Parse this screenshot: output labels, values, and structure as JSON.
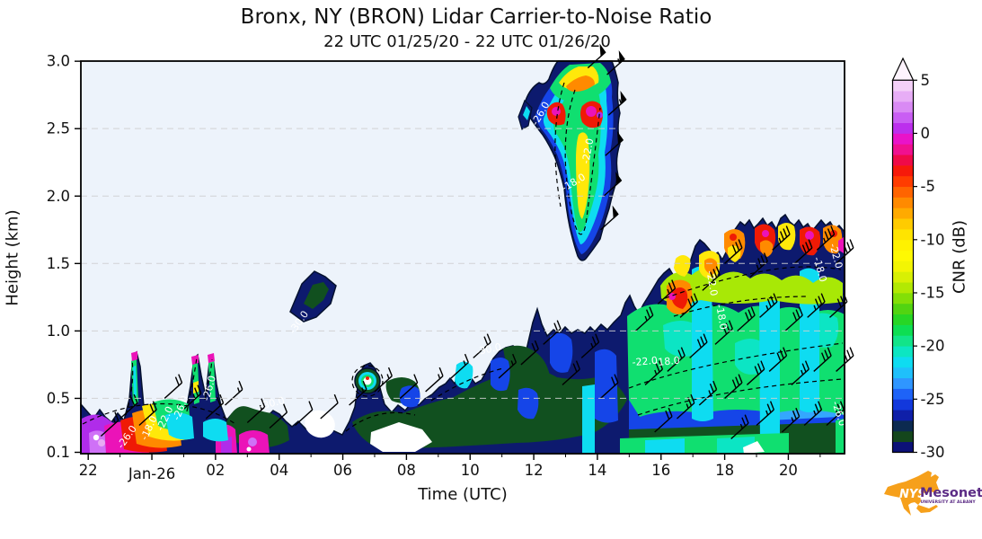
{
  "title": "Bronx, NY (BRON) Lidar Carrier-to-Noise Ratio",
  "subtitle": "22 UTC 01/25/20 - 22 UTC 01/26/20",
  "axes": {
    "x": {
      "label": "Time (UTC)",
      "ticks": [
        {
          "label": "22",
          "hours_from_start": 0
        },
        {
          "label": "Jan-26",
          "hours_from_start": 2
        },
        {
          "label": "02",
          "hours_from_start": 4
        },
        {
          "label": "04",
          "hours_from_start": 6
        },
        {
          "label": "06",
          "hours_from_start": 8
        },
        {
          "label": "08",
          "hours_from_start": 10
        },
        {
          "label": "10",
          "hours_from_start": 12
        },
        {
          "label": "12",
          "hours_from_start": 14
        },
        {
          "label": "14",
          "hours_from_start": 16
        },
        {
          "label": "16",
          "hours_from_start": 18
        },
        {
          "label": "18",
          "hours_from_start": 20
        },
        {
          "label": "20",
          "hours_from_start": 22
        }
      ]
    },
    "y": {
      "label": "Height (km)",
      "ticks": [
        {
          "label": "3.0",
          "km": 3.0
        },
        {
          "label": "2.5",
          "km": 2.5
        },
        {
          "label": "2.0",
          "km": 2.0
        },
        {
          "label": "1.5",
          "km": 1.5
        },
        {
          "label": "1.0",
          "km": 1.0
        },
        {
          "label": "0.5",
          "km": 0.5
        },
        {
          "label": "0.1",
          "km": 0.1
        }
      ],
      "range_km": [
        0.1,
        3.0
      ]
    }
  },
  "colorbar": {
    "label": "CNR (dB)",
    "range": [
      -30,
      5
    ],
    "extend": "max",
    "over_color": "#fdf3fd",
    "ticks": [
      "5",
      "0",
      "-5",
      "-10",
      "-15",
      "-20",
      "-25",
      "-30"
    ],
    "tick_values": [
      5,
      0,
      -5,
      -10,
      -15,
      -20,
      -25,
      -30
    ],
    "colors_low_to_high": [
      "#0c1177",
      "#14461c",
      "#0c2a50",
      "#0f1fa8",
      "#1238dc",
      "#1e63f7",
      "#2f96ff",
      "#1fc0fb",
      "#0edcf1",
      "#0ce6c2",
      "#12e489",
      "#0ede52",
      "#27d625",
      "#52d411",
      "#83df07",
      "#b2e903",
      "#d8f004",
      "#f3f503",
      "#fef902",
      "#fff200",
      "#ffe400",
      "#ffcb00",
      "#ffaa00",
      "#ff8a00",
      "#ff6400",
      "#ff3c00",
      "#f6190a",
      "#ef0a48",
      "#f01090",
      "#e913c9",
      "#bc2fed",
      "#c95ef3",
      "#d98af4",
      "#e7adf6",
      "#f4d0f8"
    ]
  },
  "contour_labels": [
    {
      "text": "-18.0",
      "t": 0.0,
      "h": 0.27,
      "rot": -65
    },
    {
      "text": "-22.0",
      "t": 0.5,
      "h": 0.34,
      "rot": -65
    },
    {
      "text": "-26.0",
      "t": 1.0,
      "h": 0.42,
      "rot": -68
    },
    {
      "text": "-26.0",
      "t": 1.9,
      "h": 0.57,
      "rot": -75
    },
    {
      "text": "-26.0",
      "t": 23.3,
      "h": 0.2,
      "rot": -55
    },
    {
      "text": "-30.0",
      "t": 3.8,
      "h": 0.44,
      "rot": -15
    },
    {
      "text": "-30.0",
      "t": 4.7,
      "h": 1.05,
      "rot": -55
    },
    {
      "text": "-30.0",
      "t": 10.6,
      "h": 0.84,
      "rot": -12
    },
    {
      "text": "-26.0",
      "t": 12.3,
      "h": 2.6,
      "rot": -60
    },
    {
      "text": "-22.0",
      "t": 13.8,
      "h": 2.33,
      "rot": -80
    },
    {
      "text": "-18.0",
      "t": 13.3,
      "h": 2.08,
      "rot": -30
    },
    {
      "text": "-22.0",
      "t": 15.5,
      "h": 0.75,
      "rot": -5
    },
    {
      "text": "-18.0",
      "t": 16.2,
      "h": 0.75,
      "rot": -5
    },
    {
      "text": "-22.0",
      "t": 17.5,
      "h": 1.35,
      "rot": 80
    },
    {
      "text": "-18.0",
      "t": 17.8,
      "h": 1.1,
      "rot": 80
    },
    {
      "text": "-18.0",
      "t": 20.9,
      "h": 1.45,
      "rot": 75
    },
    {
      "text": "-22.0",
      "t": 21.4,
      "h": 1.55,
      "rot": 75
    },
    {
      "text": "-26.0",
      "t": 21.5,
      "h": 0.38,
      "rot": 72
    }
  ],
  "logo": {
    "nys": "NYS",
    "name": "Mesonet",
    "sub": "UNIVERSITY AT ALBANY",
    "state_color": "#f6a01b",
    "text_color": "#5b2b85"
  },
  "chart_data": {
    "type": "heatmap",
    "title": "Bronx, NY (BRON) Lidar Carrier-to-Noise Ratio",
    "subtitle": "22 UTC 01/25/20 - 22 UTC 01/26/20",
    "xlabel": "Time (UTC)",
    "ylabel": "Height (km)",
    "value_label": "CNR (dB)",
    "value_range": [
      -30,
      5
    ],
    "x_hours_utc": [
      "22",
      "23",
      "00",
      "01",
      "02",
      "03",
      "04",
      "05",
      "06",
      "07",
      "08",
      "09",
      "10",
      "11",
      "12",
      "13",
      "14",
      "15",
      "16",
      "17",
      "18",
      "19",
      "20",
      "21"
    ],
    "heights_km": [
      0.1,
      0.3,
      0.5,
      0.7,
      0.9,
      1.1,
      1.3,
      1.5,
      1.7,
      1.9,
      2.1,
      2.4,
      2.7,
      3.0
    ],
    "cnr_db_grid_rows_by_height": [
      [
        -2,
        -6,
        -9,
        -5,
        -12,
        -28,
        -29,
        -28,
        null,
        null,
        -29,
        -28,
        -27,
        -26,
        -25,
        -23,
        -20,
        -18,
        -16,
        -17,
        -18,
        -20,
        -28,
        -22
      ],
      [
        -12,
        -16,
        -18,
        -15,
        -27,
        -29,
        -30,
        -29,
        -28,
        -28,
        -28,
        -27,
        -26,
        -25,
        -24,
        -22,
        -21,
        -19,
        -17,
        -16,
        -17,
        -19,
        -25,
        -21
      ],
      [
        -28,
        -24,
        -20,
        -23,
        -30,
        null,
        -29,
        -29,
        -29,
        -15,
        -28,
        -27,
        -26,
        -24,
        -23,
        -22,
        -21,
        -20,
        -18,
        -15,
        -17,
        -21,
        -23,
        -20
      ],
      [
        null,
        null,
        -24,
        -26,
        null,
        null,
        null,
        null,
        null,
        -22,
        -29,
        -28,
        -27,
        -25,
        -24,
        -23,
        -22,
        -21,
        -17,
        -15,
        -18,
        -22,
        -22,
        -19
      ],
      [
        null,
        null,
        null,
        null,
        null,
        null,
        null,
        null,
        null,
        null,
        null,
        -29,
        -22,
        -26,
        -25,
        -24,
        -23,
        -22,
        -18,
        -14,
        -19,
        -23,
        -21,
        -18
      ],
      [
        null,
        null,
        null,
        null,
        null,
        null,
        -29,
        null,
        null,
        null,
        null,
        null,
        null,
        -29,
        -28,
        -26,
        -27,
        -26,
        -12,
        -8,
        -20,
        -16,
        -13,
        -17
      ],
      [
        null,
        null,
        null,
        null,
        null,
        null,
        -30,
        null,
        null,
        null,
        null,
        null,
        null,
        null,
        null,
        -28,
        null,
        -28,
        -25,
        -6,
        -10,
        -12,
        -9,
        -14
      ],
      [
        null,
        null,
        null,
        null,
        null,
        null,
        null,
        null,
        null,
        null,
        null,
        null,
        null,
        null,
        null,
        null,
        null,
        -29,
        null,
        -18,
        -7,
        -9,
        -6,
        -11
      ],
      [
        null,
        null,
        null,
        null,
        null,
        null,
        null,
        null,
        null,
        null,
        null,
        null,
        null,
        null,
        null,
        -25,
        null,
        null,
        null,
        -28,
        -24,
        -26,
        -28,
        -29
      ],
      [
        null,
        null,
        null,
        null,
        null,
        null,
        null,
        null,
        null,
        null,
        null,
        null,
        null,
        null,
        -28,
        -18,
        -24,
        null,
        null,
        null,
        null,
        null,
        null,
        null
      ],
      [
        null,
        null,
        null,
        null,
        null,
        null,
        null,
        null,
        null,
        null,
        null,
        null,
        null,
        null,
        -26,
        -15,
        -22,
        null,
        null,
        null,
        null,
        null,
        null,
        null
      ],
      [
        null,
        null,
        null,
        null,
        null,
        null,
        null,
        null,
        null,
        null,
        null,
        null,
        null,
        null,
        -24,
        -12,
        -20,
        null,
        null,
        null,
        null,
        null,
        null,
        null
      ],
      [
        null,
        null,
        null,
        null,
        null,
        null,
        null,
        null,
        null,
        null,
        null,
        null,
        null,
        null,
        -20,
        -8,
        -14,
        null,
        null,
        null,
        null,
        null,
        null,
        null
      ],
      [
        null,
        null,
        null,
        null,
        null,
        null,
        null,
        null,
        null,
        null,
        null,
        null,
        null,
        null,
        -22,
        -4,
        -16,
        null,
        null,
        null,
        null,
        null,
        null,
        null
      ]
    ],
    "contour_lines_db": [
      -18,
      -22,
      -26,
      -30
    ],
    "wind_barbs_t_h_kt": [
      [
        14.3,
        2.9,
        55
      ],
      [
        14.35,
        2.6,
        55
      ],
      [
        14.25,
        2.3,
        50
      ],
      [
        14.2,
        2.0,
        50
      ],
      [
        14.1,
        1.75,
        50
      ],
      [
        13.7,
        2.95,
        50
      ],
      [
        22.4,
        0.22,
        15
      ],
      [
        23.0,
        0.35,
        20
      ],
      [
        23.6,
        0.3,
        20
      ],
      [
        0.4,
        0.5,
        20
      ],
      [
        1.0,
        0.42,
        25
      ],
      [
        1.7,
        0.35,
        20
      ],
      [
        2.3,
        0.45,
        15
      ],
      [
        3.0,
        0.32,
        15
      ],
      [
        3.7,
        0.28,
        10
      ],
      [
        4.5,
        0.3,
        10
      ],
      [
        5.3,
        0.35,
        10
      ],
      [
        6.2,
        0.45,
        15
      ],
      [
        7.0,
        0.55,
        15
      ],
      [
        7.8,
        0.5,
        10
      ],
      [
        8.6,
        0.55,
        15
      ],
      [
        9.4,
        0.65,
        15
      ],
      [
        10.1,
        0.8,
        20
      ],
      [
        10.9,
        0.65,
        15
      ],
      [
        11.6,
        0.75,
        20
      ],
      [
        12.3,
        0.9,
        20
      ],
      [
        12.9,
        0.6,
        20
      ],
      [
        13.5,
        0.8,
        25
      ],
      [
        14.1,
        0.5,
        20
      ],
      [
        15.2,
        1.0,
        25
      ],
      [
        15.9,
        1.2,
        25
      ],
      [
        16.6,
        1.1,
        30
      ],
      [
        17.3,
        1.3,
        30
      ],
      [
        18.0,
        1.5,
        30
      ],
      [
        18.8,
        1.4,
        35
      ],
      [
        19.5,
        1.6,
        35
      ],
      [
        20.2,
        1.5,
        30
      ],
      [
        20.9,
        1.6,
        35
      ],
      [
        21.5,
        1.5,
        30
      ],
      [
        15.5,
        0.6,
        25
      ],
      [
        16.2,
        0.7,
        25
      ],
      [
        16.9,
        0.8,
        30
      ],
      [
        17.7,
        0.9,
        30
      ],
      [
        18.4,
        1.0,
        30
      ],
      [
        19.1,
        1.1,
        35
      ],
      [
        19.9,
        1.0,
        30
      ],
      [
        20.6,
        1.1,
        35
      ],
      [
        21.3,
        1.1,
        30
      ],
      [
        15.8,
        0.25,
        20
      ],
      [
        16.5,
        0.35,
        25
      ],
      [
        17.2,
        0.45,
        25
      ],
      [
        18.0,
        0.5,
        30
      ],
      [
        18.7,
        0.6,
        30
      ],
      [
        19.4,
        0.7,
        30
      ],
      [
        20.1,
        0.6,
        25
      ],
      [
        20.8,
        0.7,
        30
      ],
      [
        21.5,
        0.7,
        30
      ],
      [
        18.2,
        0.2,
        25
      ],
      [
        19.0,
        0.3,
        25
      ],
      [
        19.8,
        0.25,
        25
      ],
      [
        20.5,
        0.3,
        25
      ],
      [
        21.2,
        0.3,
        25
      ]
    ]
  }
}
